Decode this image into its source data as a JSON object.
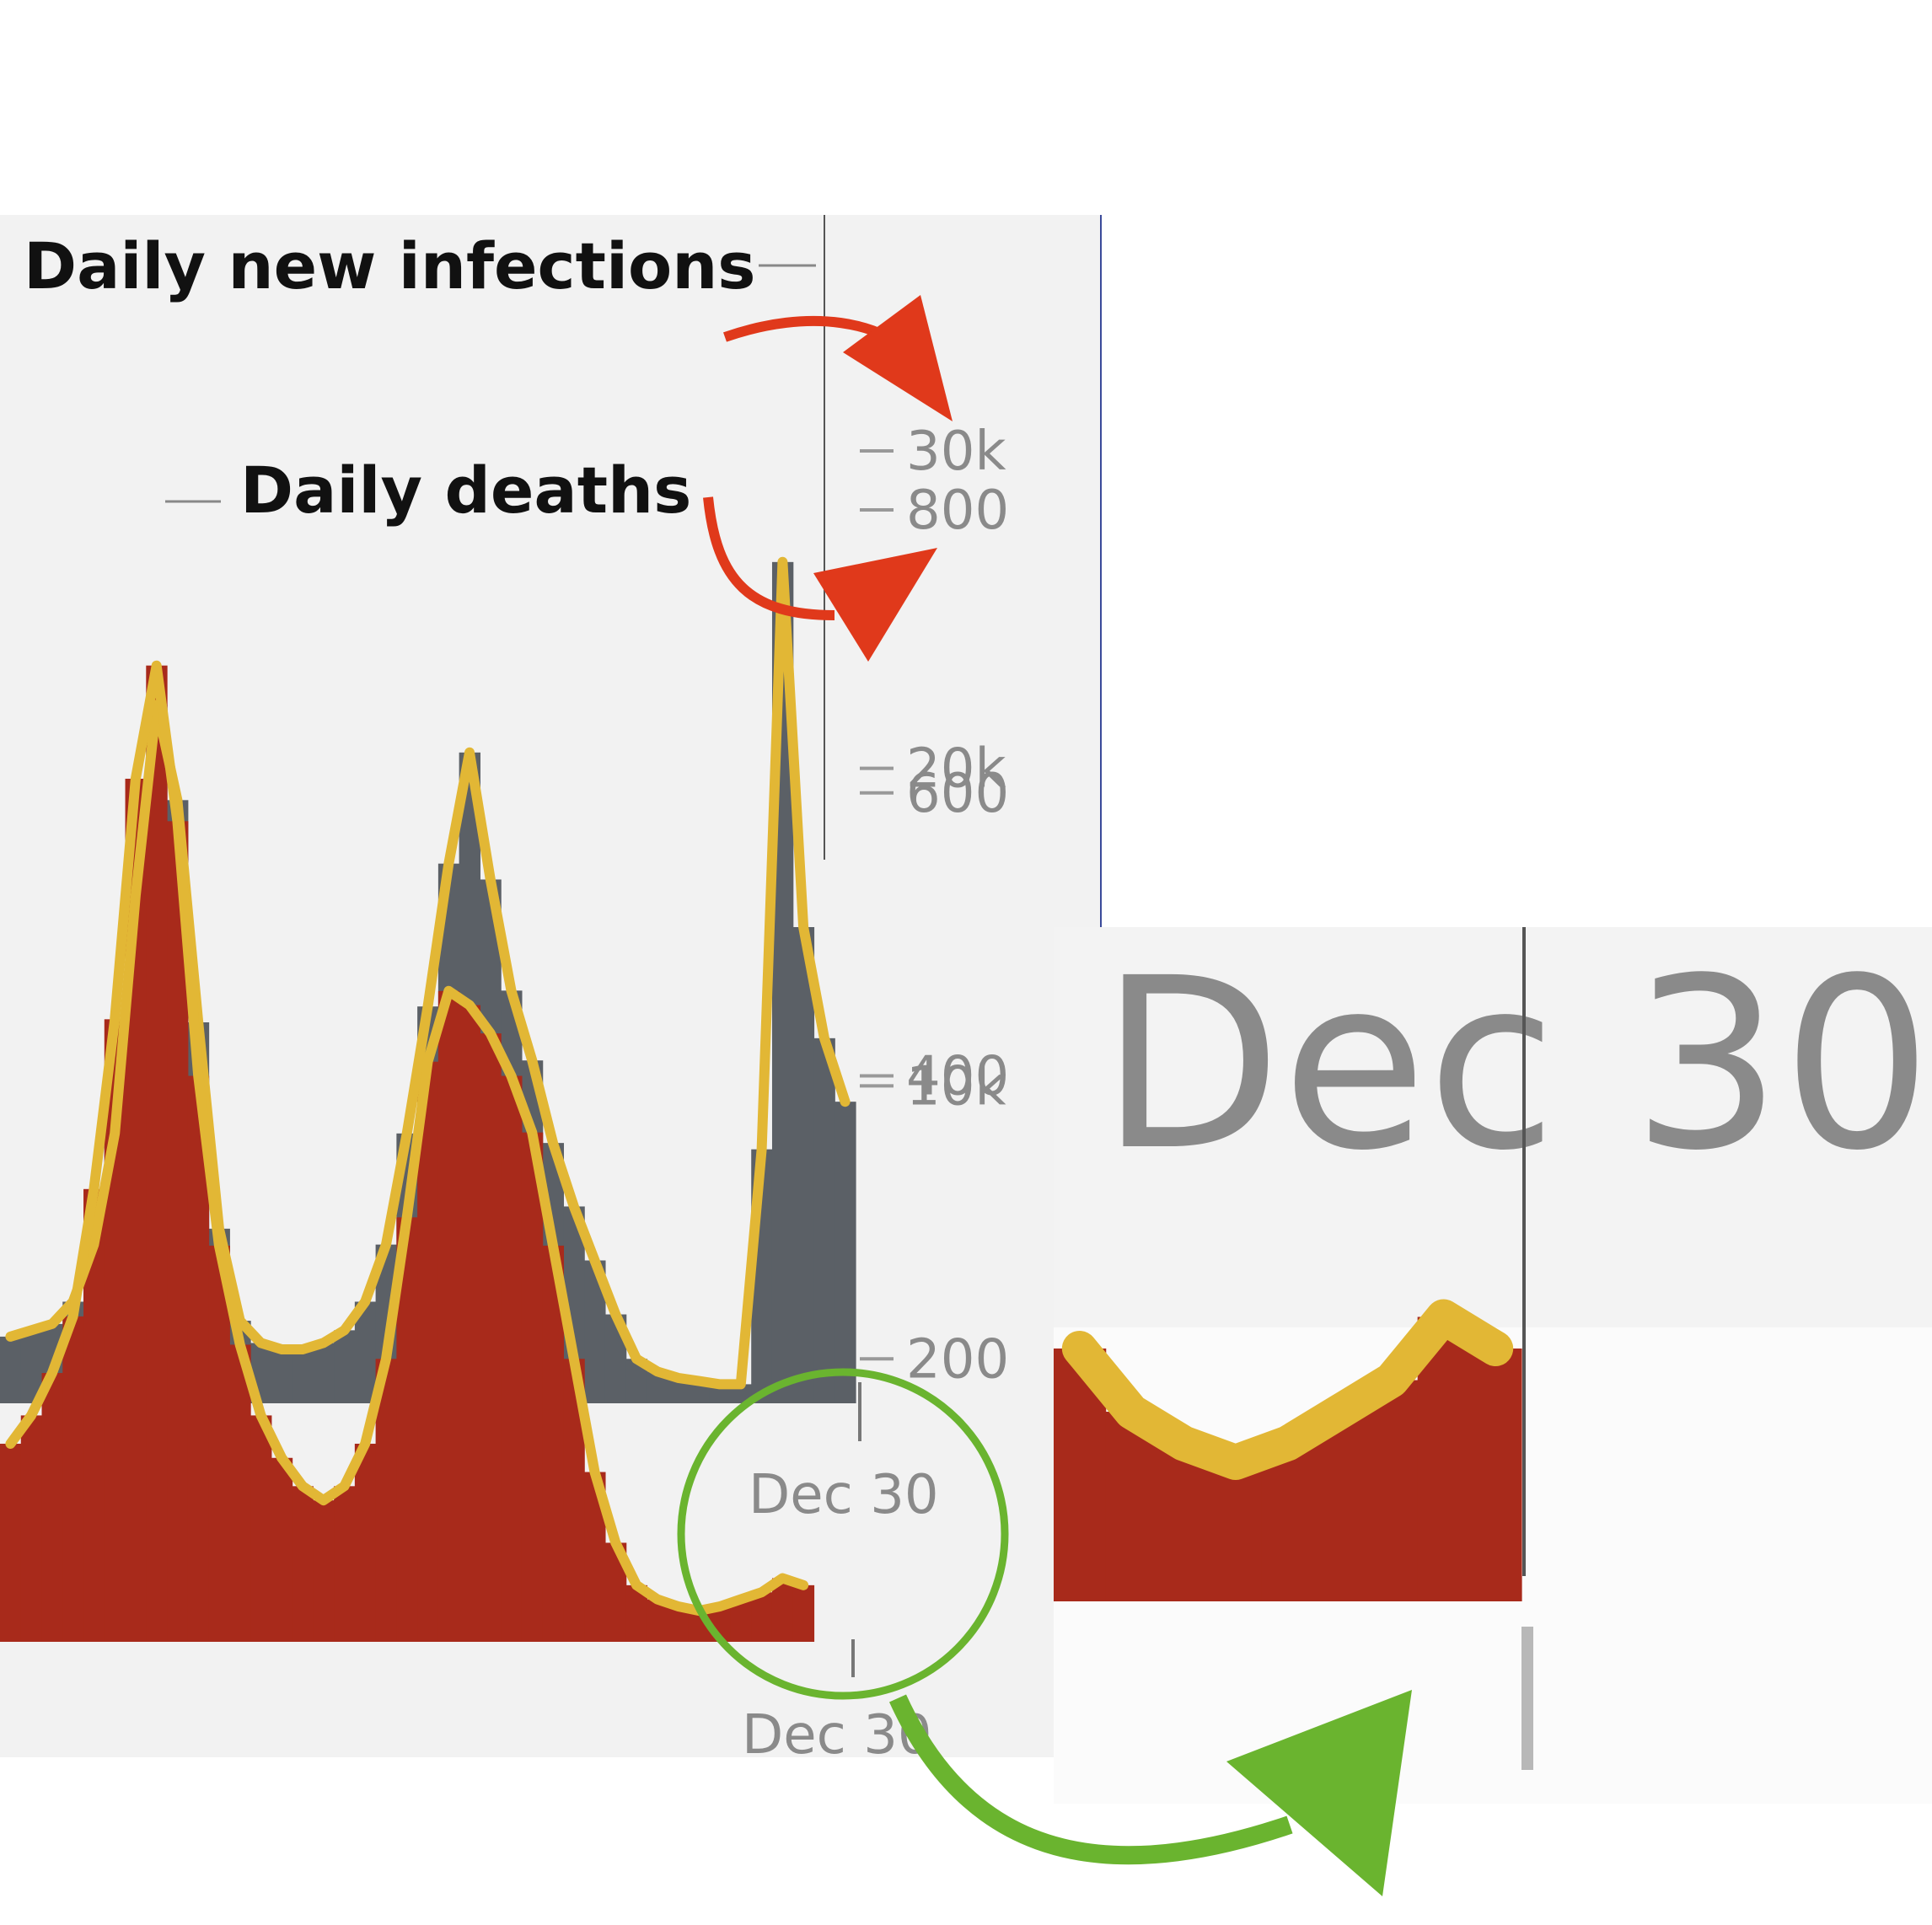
{
  "colors": {
    "infections_bars": "#5b6066",
    "deaths_bars": "#a82a1b",
    "average_line": "#e2b735",
    "annotation_red": "#e0391b",
    "annotation_green": "#6ab42f",
    "panel_bg": "#f2f2f2"
  },
  "annotations": {
    "infections_label": "Daily new infections",
    "deaths_label": "Daily deaths",
    "zoom_date": "Dec 30",
    "arrow_icon": "curved-arrow-icon",
    "circle_icon": "highlight-circle-icon"
  },
  "chart_data": [
    {
      "type": "bar",
      "overlay": "line",
      "series": [
        {
          "name": "Daily new infections",
          "values": [
            2100,
            2300,
            2500,
            3200,
            5000,
            8500,
            16000,
            22000,
            19000,
            12000,
            5500,
            2600,
            1900,
            1700,
            1700,
            1900,
            2300,
            3200,
            5000,
            8500,
            12500,
            17000,
            20500,
            16500,
            13000,
            10800,
            8200,
            6200,
            4500,
            2800,
            1400,
            1000,
            800,
            700,
            600,
            600,
            8000,
            26500,
            15000,
            11500,
            9500
          ]
        },
        {
          "name": "Daily deaths",
          "values": [
            140,
            160,
            190,
            230,
            320,
            440,
            610,
            690,
            580,
            400,
            280,
            210,
            160,
            130,
            110,
            100,
            110,
            140,
            200,
            300,
            410,
            460,
            450,
            430,
            400,
            360,
            280,
            200,
            120,
            70,
            40,
            30,
            25,
            22,
            25,
            30,
            35,
            45,
            40,
            0,
            0
          ]
        }
      ],
      "x_last_tick": "Dec 30",
      "y_left_ticks": [
        "30k",
        "20k",
        "10k"
      ],
      "y_right_ticks": [
        "800",
        "600",
        "400",
        "200"
      ],
      "legend": "none",
      "grid": false
    }
  ]
}
